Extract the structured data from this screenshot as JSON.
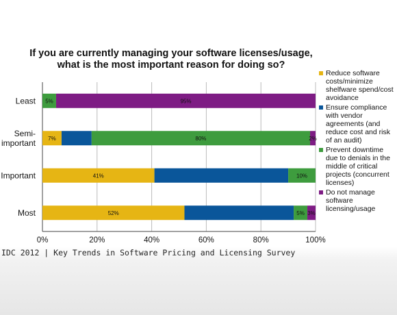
{
  "chart_data": {
    "type": "bar",
    "orientation": "horizontal",
    "stacked": true,
    "title": "If you are currently managing your software licenses/usage, what is the most important reason for doing so?",
    "categories": [
      "Least",
      "Semi-\nimportant",
      "Important",
      "Most"
    ],
    "xlim": [
      0,
      100
    ],
    "xticks": [
      "0%",
      "20%",
      "40%",
      "60%",
      "80%",
      "100%"
    ],
    "grid": true,
    "legend_position": "right",
    "series": [
      {
        "name": "Reduce software costs/minimize shelfware spend/cost avoidance",
        "color": "#e6b514",
        "values": [
          0,
          7,
          41,
          52
        ],
        "labels": [
          "",
          "7%",
          "41%",
          "52%"
        ]
      },
      {
        "name": "Ensure compliance with vendor agreements (and reduce cost and risk of an audit)",
        "color": "#0a569a",
        "values": [
          0,
          11,
          49,
          40
        ],
        "labels": [
          "",
          "",
          "",
          ""
        ]
      },
      {
        "name": "Prevent downtime due to denials in the middle of critical projects (concurrent licenses)",
        "color": "#3e9c3e",
        "values": [
          5,
          80,
          10,
          5
        ],
        "labels": [
          "5%",
          "80%",
          "10%",
          "5%"
        ]
      },
      {
        "name": "Do not manage software licensing/usage",
        "color": "#7e1c84",
        "values": [
          95,
          2,
          0,
          3
        ],
        "labels": [
          "95%",
          "2%",
          "",
          "3%"
        ]
      }
    ]
  },
  "source": "IDC 2012 | Key Trends in Software Pricing and Licensing Survey"
}
